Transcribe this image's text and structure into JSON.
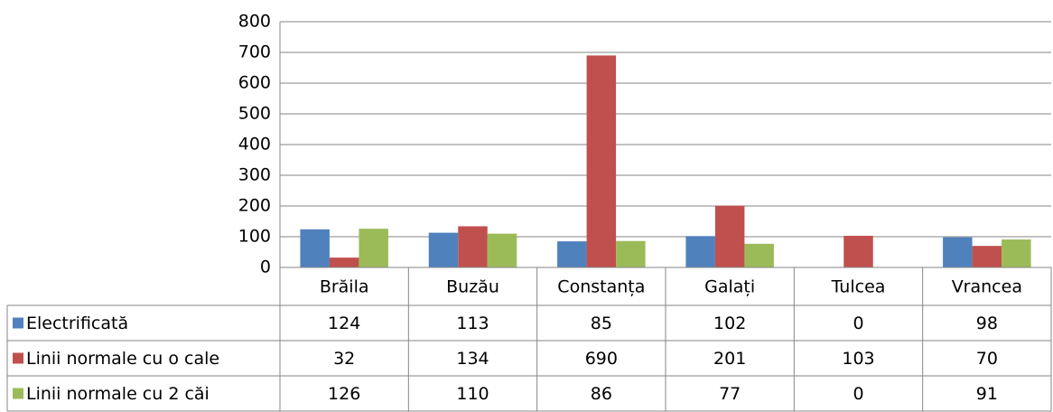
{
  "chart_data": {
    "type": "bar",
    "categories": [
      "Brăila",
      "Buzău",
      "Constanța",
      "Galați",
      "Tulcea",
      "Vrancea"
    ],
    "series": [
      {
        "name": "Electrificată",
        "color": "#4f81bd",
        "values": [
          124,
          113,
          85,
          102,
          0,
          98
        ]
      },
      {
        "name": "Linii normale cu o cale",
        "color": "#c0504d",
        "values": [
          32,
          134,
          690,
          201,
          103,
          70
        ]
      },
      {
        "name": "Linii normale cu 2 căi",
        "color": "#9bbb59",
        "values": [
          126,
          110,
          86,
          77,
          0,
          91
        ]
      }
    ],
    "ylim": [
      0,
      800
    ],
    "yticks": [
      0,
      100,
      200,
      300,
      400,
      500,
      600,
      700,
      800
    ],
    "grid": true,
    "data_table": true
  }
}
